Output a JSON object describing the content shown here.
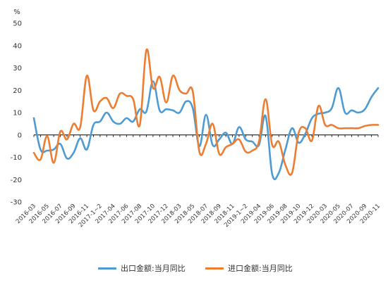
{
  "chart_data": {
    "type": "line",
    "unit_label": "%",
    "ylim": [
      -30,
      50
    ],
    "yticks": [
      50,
      40,
      30,
      20,
      10,
      0,
      -10,
      -20,
      -30
    ],
    "x": [
      "2016-03",
      "2016-04",
      "2016-05",
      "2016-06",
      "2016-07",
      "2016-08",
      "2016-09",
      "2016-10",
      "2016-11",
      "2016-12",
      "2017-1~2",
      "2017-03",
      "2017-04",
      "2017-05",
      "2017-06",
      "2017-07",
      "2017-08",
      "2017-09",
      "2017-10",
      "2017-11",
      "2017-12",
      "2018-1~2",
      "2018-03",
      "2018-04",
      "2018-05",
      "2018-06",
      "2018-07",
      "2018-08",
      "2018-09",
      "2018-10",
      "2018-11",
      "2018-12",
      "2019-1~2",
      "2019-03",
      "2019-04",
      "2019-05",
      "2019-06",
      "2019-07",
      "2019-08",
      "2019-09",
      "2019-10",
      "2019-11",
      "2019-12",
      "2020-1~2",
      "2020-03",
      "2020-04",
      "2020-05",
      "2020-06",
      "2020-07",
      "2020-08",
      "2020-09",
      "2020-10",
      "2020-11"
    ],
    "xtick_labels": [
      "2016-03",
      "2016-05",
      "2016-07",
      "2016-09",
      "2016-11",
      "2017-1~2",
      "2017-04",
      "2017-06",
      "2017-08",
      "2017-10",
      "2017-12",
      "2018-03",
      "2018-05",
      "2018-07",
      "2018-09",
      "2018-11",
      "2019-1~2",
      "2019-04",
      "2019-06",
      "2019-08",
      "2019-10",
      "2019-12",
      "2020-03",
      "2020-05",
      "2020-07",
      "2020-09",
      "2020-11"
    ],
    "series": [
      {
        "name": "出口金额:当月同比",
        "color": "#4E9BD3",
        "values": [
          7.5,
          -6.5,
          -7,
          -6.5,
          -4,
          -10.5,
          -8,
          -1.5,
          -6.5,
          4.5,
          6,
          10,
          6,
          5,
          7.5,
          6,
          11.5,
          10.5,
          24,
          11,
          11.5,
          11,
          10,
          15,
          12,
          -5,
          9,
          -4.5,
          -2,
          1,
          -4,
          3.5,
          -2,
          -3,
          -4.5,
          8.5,
          -17.5,
          -17,
          -6.5,
          3,
          -3.5,
          0.5,
          7.5,
          9.5,
          10,
          12,
          21,
          10,
          11,
          10,
          11.5,
          17,
          21
        ]
      },
      {
        "name": "进口金额:当月同比",
        "color": "#ED7D31",
        "values": [
          -8,
          -11,
          -0.5,
          -12.5,
          1.5,
          -2,
          5,
          3.5,
          26.5,
          11,
          15,
          16.5,
          12,
          18.5,
          17.5,
          16,
          4.5,
          38,
          21,
          26,
          14.5,
          26.5,
          20,
          18.5,
          19.5,
          -7.5,
          -4,
          5,
          -8.5,
          -5.5,
          -4,
          -2,
          -7.5,
          -7,
          -3,
          16,
          -4.5,
          -3,
          -13.5,
          -17,
          1,
          3,
          -2.5,
          13,
          4.5,
          4.5,
          3,
          3,
          3,
          3,
          4,
          4.5,
          4.5
        ]
      }
    ],
    "legend_position": "bottom"
  }
}
